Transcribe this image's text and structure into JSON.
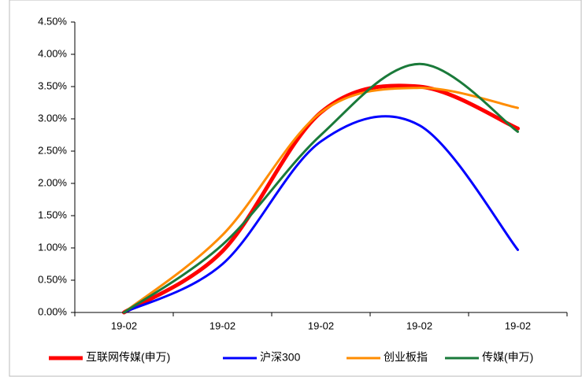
{
  "chart_data": {
    "type": "line",
    "categories": [
      "19-02",
      "19-02",
      "19-02",
      "19-02",
      "19-02"
    ],
    "series": [
      {
        "name": "互联网传媒(申万)",
        "color": "#ff0000",
        "values": [
          0,
          0.95,
          3.1,
          3.5,
          2.85
        ]
      },
      {
        "name": "沪深300",
        "color": "#0000ff",
        "values": [
          0,
          0.75,
          2.65,
          2.9,
          0.97
        ]
      },
      {
        "name": "创业板指",
        "color": "#ff8c00",
        "values": [
          0,
          1.2,
          3.1,
          3.48,
          3.17
        ]
      },
      {
        "name": "传媒(申万)",
        "color": "#1a7a3a",
        "values": [
          0,
          1.05,
          2.75,
          3.85,
          2.8
        ]
      }
    ],
    "ylim": [
      0,
      4.5
    ],
    "yticks": [
      {
        "value": 0,
        "label": "0.00%"
      },
      {
        "value": 0.5,
        "label": "0.50%"
      },
      {
        "value": 1,
        "label": "1.00%"
      },
      {
        "value": 1.5,
        "label": "1.50%"
      },
      {
        "value": 2,
        "label": "2.00%"
      },
      {
        "value": 2.5,
        "label": "2.50%"
      },
      {
        "value": 3,
        "label": "3.00%"
      },
      {
        "value": 3.5,
        "label": "3.50%"
      },
      {
        "value": 4,
        "label": "4.00%"
      },
      {
        "value": 4.5,
        "label": "4.50%"
      }
    ],
    "grid": false
  }
}
